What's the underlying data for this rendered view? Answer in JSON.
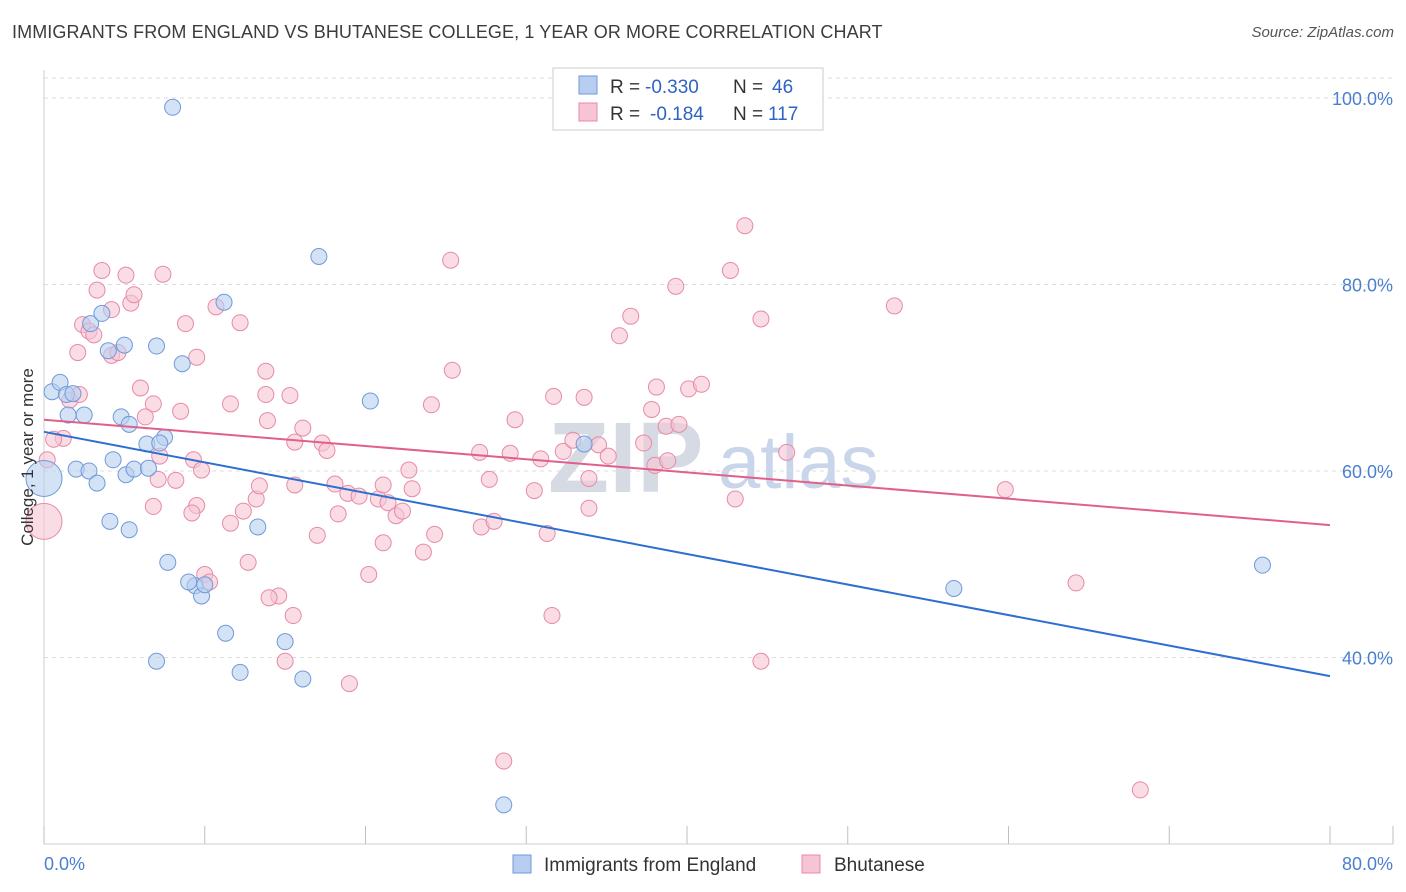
{
  "header": {
    "title": "IMMIGRANTS FROM ENGLAND VS BHUTANESE COLLEGE, 1 YEAR OR MORE CORRELATION CHART",
    "source": "Source: ZipAtlas.com"
  },
  "watermark": {
    "zip": "ZIP",
    "atlas": "atlas"
  },
  "legend_box": {
    "rows": [
      {
        "r_label": "R = ",
        "r_value": "-0.330",
        "n_label": "N = ",
        "n_value": "46"
      },
      {
        "r_label": "R = ",
        "r_value": "-0.184",
        "n_label": "N = ",
        "n_value": "117"
      }
    ]
  },
  "bottom_legend": {
    "items": [
      {
        "label": "Immigrants from England"
      },
      {
        "label": "Bhutanese"
      }
    ]
  },
  "colors": {
    "blue_fill": "#b8cef0",
    "blue_stroke": "#6f9ad8",
    "blue_line": "#2c6fd0",
    "pink_fill": "#f6c4d4",
    "pink_stroke": "#e78aa8",
    "pink_line": "#e0608a",
    "grid": "#dcdcdc",
    "tick_label": "#4a7fd0"
  },
  "chart_data": {
    "type": "scatter",
    "title": "IMMIGRANTS FROM ENGLAND VS BHUTANESE COLLEGE, 1 YEAR OR MORE CORRELATION CHART",
    "xlabel": "",
    "ylabel": "College, 1 year or more",
    "xlim": [
      0,
      80
    ],
    "ylim": [
      20,
      103
    ],
    "x_tick_labels": [
      "0.0%",
      "80.0%"
    ],
    "y_tick_labels": [
      "100.0%",
      "80.0%",
      "60.0%",
      "40.0%"
    ],
    "y_tick_values": [
      100,
      80,
      60,
      40
    ],
    "grid": true,
    "legend_position": "top-center",
    "series": [
      {
        "name": "Immigrants from England",
        "r": -0.33,
        "n": 46,
        "trend": {
          "x": [
            0,
            80
          ],
          "y": [
            64.2,
            38.0
          ]
        },
        "points": [
          {
            "x": 0.0,
            "y": 59.2,
            "big": true
          },
          {
            "x": 0.5,
            "y": 68.5
          },
          {
            "x": 1.0,
            "y": 69.5
          },
          {
            "x": 1.4,
            "y": 68.2
          },
          {
            "x": 1.8,
            "y": 68.3
          },
          {
            "x": 1.5,
            "y": 66.0
          },
          {
            "x": 2.5,
            "y": 66.0
          },
          {
            "x": 2.0,
            "y": 60.2
          },
          {
            "x": 2.8,
            "y": 60.0
          },
          {
            "x": 3.3,
            "y": 58.7
          },
          {
            "x": 4.3,
            "y": 61.2
          },
          {
            "x": 5.1,
            "y": 59.6
          },
          {
            "x": 5.6,
            "y": 60.2
          },
          {
            "x": 6.5,
            "y": 60.3
          },
          {
            "x": 6.4,
            "y": 62.9
          },
          {
            "x": 4.8,
            "y": 65.8
          },
          {
            "x": 5.3,
            "y": 65.0
          },
          {
            "x": 7.5,
            "y": 63.6
          },
          {
            "x": 2.9,
            "y": 75.8
          },
          {
            "x": 3.6,
            "y": 76.9
          },
          {
            "x": 4.0,
            "y": 72.9
          },
          {
            "x": 5.0,
            "y": 73.5
          },
          {
            "x": 7.0,
            "y": 73.4
          },
          {
            "x": 8.6,
            "y": 71.5
          },
          {
            "x": 11.2,
            "y": 78.1
          },
          {
            "x": 8.0,
            "y": 99.0
          },
          {
            "x": 17.1,
            "y": 83.0
          },
          {
            "x": 20.3,
            "y": 67.5
          },
          {
            "x": 7.2,
            "y": 63.0
          },
          {
            "x": 4.1,
            "y": 54.6
          },
          {
            "x": 5.3,
            "y": 53.7
          },
          {
            "x": 7.7,
            "y": 50.2
          },
          {
            "x": 9.4,
            "y": 47.7
          },
          {
            "x": 9.8,
            "y": 46.6
          },
          {
            "x": 10.0,
            "y": 47.8
          },
          {
            "x": 13.3,
            "y": 54.0
          },
          {
            "x": 11.3,
            "y": 42.6
          },
          {
            "x": 15.0,
            "y": 41.7
          },
          {
            "x": 12.2,
            "y": 38.4
          },
          {
            "x": 16.1,
            "y": 37.7
          },
          {
            "x": 7.0,
            "y": 39.6
          },
          {
            "x": 28.6,
            "y": 24.2
          },
          {
            "x": 33.6,
            "y": 62.9
          },
          {
            "x": 56.6,
            "y": 47.4
          },
          {
            "x": 75.8,
            "y": 49.9
          },
          {
            "x": 9.0,
            "y": 48.1
          }
        ]
      },
      {
        "name": "Bhutanese",
        "r": -0.184,
        "n": 117,
        "trend": {
          "x": [
            0,
            80
          ],
          "y": [
            65.5,
            54.2
          ]
        },
        "points": [
          {
            "x": 0.0,
            "y": 54.6,
            "big": true
          },
          {
            "x": 0.2,
            "y": 61.2
          },
          {
            "x": 1.2,
            "y": 63.5
          },
          {
            "x": 0.6,
            "y": 63.4
          },
          {
            "x": 1.6,
            "y": 67.6
          },
          {
            "x": 2.2,
            "y": 68.2
          },
          {
            "x": 2.1,
            "y": 72.7
          },
          {
            "x": 2.4,
            "y": 75.7
          },
          {
            "x": 2.8,
            "y": 75.0
          },
          {
            "x": 3.1,
            "y": 74.6
          },
          {
            "x": 3.3,
            "y": 79.4
          },
          {
            "x": 3.6,
            "y": 81.5
          },
          {
            "x": 4.2,
            "y": 77.3
          },
          {
            "x": 4.2,
            "y": 72.4
          },
          {
            "x": 4.6,
            "y": 72.7
          },
          {
            "x": 5.1,
            "y": 81.0
          },
          {
            "x": 5.4,
            "y": 78.0
          },
          {
            "x": 5.6,
            "y": 78.9
          },
          {
            "x": 7.4,
            "y": 81.1
          },
          {
            "x": 8.8,
            "y": 75.8
          },
          {
            "x": 6.0,
            "y": 68.9
          },
          {
            "x": 6.8,
            "y": 67.2
          },
          {
            "x": 6.3,
            "y": 65.8
          },
          {
            "x": 8.5,
            "y": 66.4
          },
          {
            "x": 9.5,
            "y": 72.2
          },
          {
            "x": 10.7,
            "y": 77.6
          },
          {
            "x": 12.2,
            "y": 75.9
          },
          {
            "x": 11.6,
            "y": 67.2
          },
          {
            "x": 13.8,
            "y": 70.7
          },
          {
            "x": 13.9,
            "y": 65.4
          },
          {
            "x": 15.3,
            "y": 68.1
          },
          {
            "x": 16.1,
            "y": 64.6
          },
          {
            "x": 15.6,
            "y": 63.1
          },
          {
            "x": 17.3,
            "y": 63.0
          },
          {
            "x": 17.6,
            "y": 62.2
          },
          {
            "x": 18.1,
            "y": 58.6
          },
          {
            "x": 7.1,
            "y": 59.1
          },
          {
            "x": 7.2,
            "y": 61.6
          },
          {
            "x": 9.3,
            "y": 61.2
          },
          {
            "x": 9.8,
            "y": 60.1
          },
          {
            "x": 6.8,
            "y": 56.2
          },
          {
            "x": 8.2,
            "y": 59.0
          },
          {
            "x": 9.5,
            "y": 56.3
          },
          {
            "x": 9.2,
            "y": 55.5
          },
          {
            "x": 11.6,
            "y": 54.4
          },
          {
            "x": 12.4,
            "y": 55.7
          },
          {
            "x": 13.2,
            "y": 57.0
          },
          {
            "x": 13.4,
            "y": 58.4
          },
          {
            "x": 15.6,
            "y": 58.5
          },
          {
            "x": 12.7,
            "y": 50.2
          },
          {
            "x": 17.0,
            "y": 53.1
          },
          {
            "x": 18.3,
            "y": 55.4
          },
          {
            "x": 18.9,
            "y": 57.6
          },
          {
            "x": 19.6,
            "y": 57.3
          },
          {
            "x": 20.8,
            "y": 57.0
          },
          {
            "x": 21.1,
            "y": 58.5
          },
          {
            "x": 21.4,
            "y": 56.6
          },
          {
            "x": 21.9,
            "y": 55.2
          },
          {
            "x": 22.3,
            "y": 55.7
          },
          {
            "x": 22.7,
            "y": 60.1
          },
          {
            "x": 22.9,
            "y": 58.1
          },
          {
            "x": 21.1,
            "y": 52.3
          },
          {
            "x": 20.2,
            "y": 48.9
          },
          {
            "x": 23.6,
            "y": 51.3
          },
          {
            "x": 24.3,
            "y": 53.2
          },
          {
            "x": 15.5,
            "y": 44.5
          },
          {
            "x": 14.6,
            "y": 46.6
          },
          {
            "x": 14.0,
            "y": 46.4
          },
          {
            "x": 15.0,
            "y": 39.6
          },
          {
            "x": 19.0,
            "y": 37.2
          },
          {
            "x": 10.0,
            "y": 48.9
          },
          {
            "x": 10.3,
            "y": 48.1
          },
          {
            "x": 24.1,
            "y": 67.1
          },
          {
            "x": 25.4,
            "y": 70.8
          },
          {
            "x": 25.3,
            "y": 82.6
          },
          {
            "x": 27.1,
            "y": 62.0
          },
          {
            "x": 27.2,
            "y": 54.0
          },
          {
            "x": 27.7,
            "y": 59.1
          },
          {
            "x": 28.0,
            "y": 54.6
          },
          {
            "x": 29.0,
            "y": 61.9
          },
          {
            "x": 29.3,
            "y": 65.5
          },
          {
            "x": 30.5,
            "y": 57.9
          },
          {
            "x": 30.9,
            "y": 61.3
          },
          {
            "x": 31.3,
            "y": 53.3
          },
          {
            "x": 31.7,
            "y": 68.0
          },
          {
            "x": 32.3,
            "y": 62.1
          },
          {
            "x": 32.9,
            "y": 63.3
          },
          {
            "x": 33.6,
            "y": 67.9
          },
          {
            "x": 33.9,
            "y": 59.2
          },
          {
            "x": 33.9,
            "y": 56.0
          },
          {
            "x": 34.5,
            "y": 62.8
          },
          {
            "x": 35.1,
            "y": 61.6
          },
          {
            "x": 35.8,
            "y": 74.5
          },
          {
            "x": 36.5,
            "y": 76.6
          },
          {
            "x": 37.3,
            "y": 63.0
          },
          {
            "x": 37.8,
            "y": 66.6
          },
          {
            "x": 38.0,
            "y": 60.6
          },
          {
            "x": 38.8,
            "y": 61.1
          },
          {
            "x": 38.1,
            "y": 69.0
          },
          {
            "x": 38.7,
            "y": 64.8
          },
          {
            "x": 39.5,
            "y": 65.0
          },
          {
            "x": 40.1,
            "y": 68.8
          },
          {
            "x": 40.9,
            "y": 69.3
          },
          {
            "x": 39.3,
            "y": 79.8
          },
          {
            "x": 42.7,
            "y": 81.5
          },
          {
            "x": 43.6,
            "y": 86.3
          },
          {
            "x": 44.6,
            "y": 76.3
          },
          {
            "x": 43.0,
            "y": 57.0
          },
          {
            "x": 46.2,
            "y": 62.0
          },
          {
            "x": 44.6,
            "y": 39.6
          },
          {
            "x": 52.9,
            "y": 77.7
          },
          {
            "x": 59.8,
            "y": 58.0
          },
          {
            "x": 64.2,
            "y": 48.0
          },
          {
            "x": 68.2,
            "y": 25.8
          },
          {
            "x": 28.6,
            "y": 28.9
          },
          {
            "x": 31.6,
            "y": 44.5
          },
          {
            "x": 13.8,
            "y": 68.2
          }
        ]
      }
    ]
  }
}
